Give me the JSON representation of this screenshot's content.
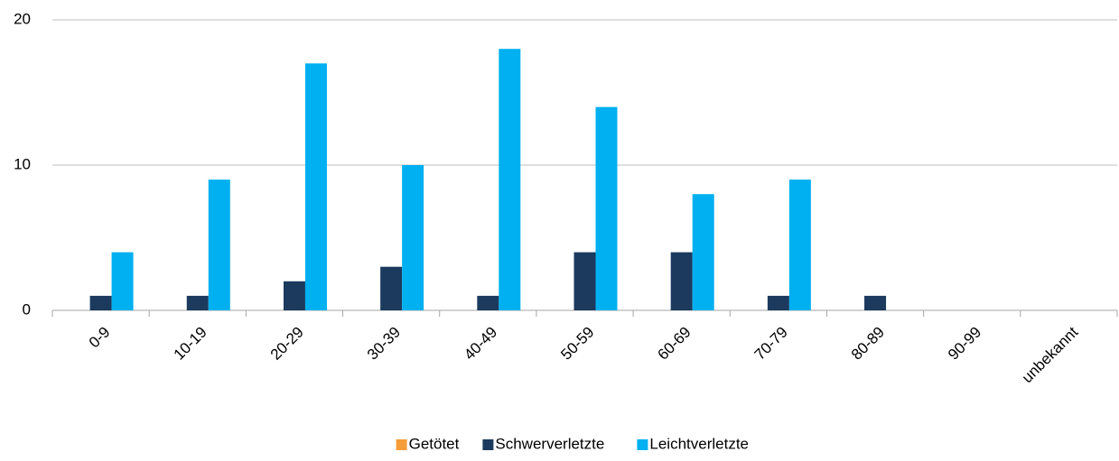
{
  "chart_data": {
    "type": "bar",
    "categories": [
      "0-9",
      "10-19",
      "20-29",
      "30-39",
      "40-49",
      "50-59",
      "60-69",
      "70-79",
      "80-89",
      "90-99",
      "unbekannt"
    ],
    "series": [
      {
        "name": "Getötet",
        "color": "#f59d38",
        "values": [
          0,
          0,
          0,
          0,
          0,
          0,
          0,
          0,
          0,
          0,
          0
        ]
      },
      {
        "name": "Schwerverletzte",
        "color": "#1b3a5e",
        "values": [
          1,
          1,
          2,
          3,
          1,
          4,
          4,
          1,
          1,
          0,
          0
        ]
      },
      {
        "name": "Leichtverletzte",
        "color": "#00b0f0",
        "values": [
          4,
          9,
          17,
          10,
          18,
          14,
          8,
          9,
          0,
          0,
          0
        ]
      }
    ],
    "ylim": [
      0,
      20
    ],
    "yticks": [
      0,
      10,
      20
    ],
    "grid": true,
    "legend": "bottom"
  }
}
